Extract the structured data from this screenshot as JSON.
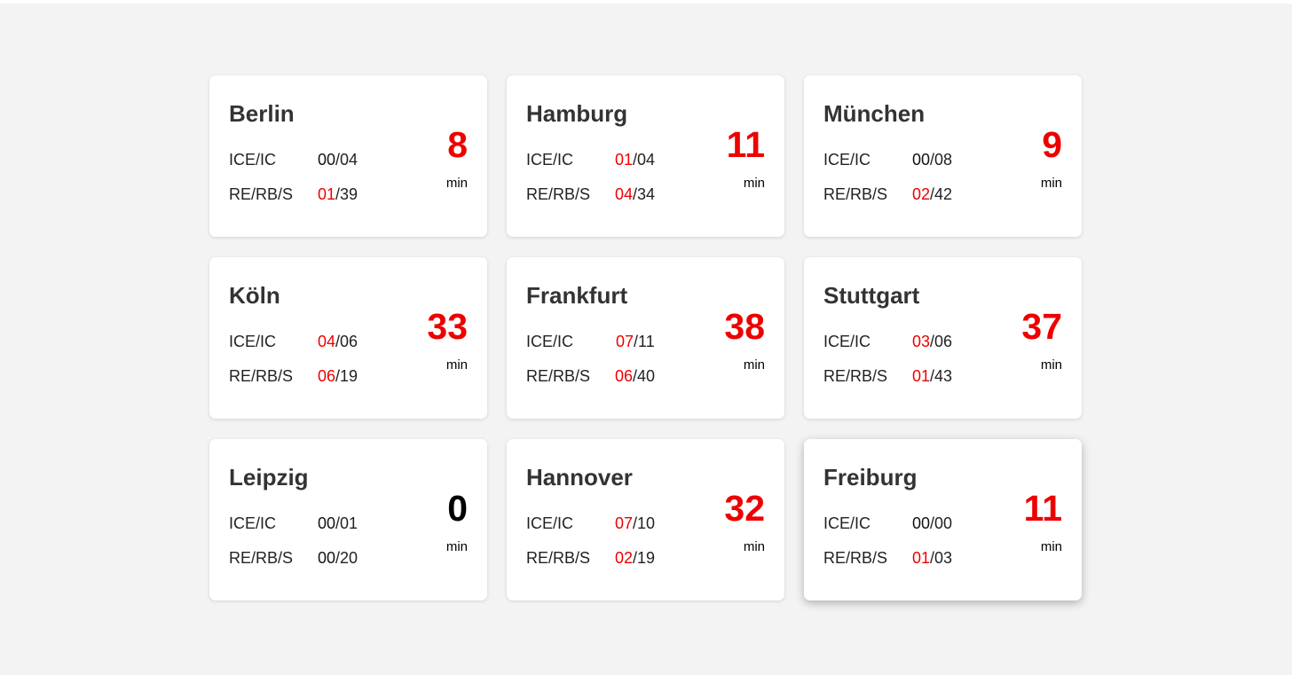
{
  "colors": {
    "background": "#f3f3f3",
    "card": "#ffffff",
    "delay_red": "#ee0000",
    "text": "#222222",
    "title": "#333333"
  },
  "stations": [
    {
      "name": "Berlin",
      "ice_label": "ICE/IC",
      "ice_delayed": "00",
      "ice_total": "04",
      "re_label": "RE/RB/S",
      "re_delayed": "01",
      "re_total": "39",
      "delay": "8",
      "unit": "min"
    },
    {
      "name": "Hamburg",
      "ice_label": "ICE/IC",
      "ice_delayed": "01",
      "ice_total": "04",
      "re_label": "RE/RB/S",
      "re_delayed": "04",
      "re_total": "34",
      "delay": "11",
      "unit": "min"
    },
    {
      "name": "München",
      "ice_label": "ICE/IC",
      "ice_delayed": "00",
      "ice_total": "08",
      "re_label": "RE/RB/S",
      "re_delayed": "02",
      "re_total": "42",
      "delay": "9",
      "unit": "min"
    },
    {
      "name": "Köln",
      "ice_label": "ICE/IC",
      "ice_delayed": "04",
      "ice_total": "06",
      "re_label": "RE/RB/S",
      "re_delayed": "06",
      "re_total": "19",
      "delay": "33",
      "unit": "min"
    },
    {
      "name": "Frankfurt",
      "ice_label": "ICE/IC",
      "ice_delayed": "07",
      "ice_total": "11",
      "re_label": "RE/RB/S",
      "re_delayed": "06",
      "re_total": "40",
      "delay": "38",
      "unit": "min"
    },
    {
      "name": "Stuttgart",
      "ice_label": "ICE/IC",
      "ice_delayed": "03",
      "ice_total": "06",
      "re_label": "RE/RB/S",
      "re_delayed": "01",
      "re_total": "43",
      "delay": "37",
      "unit": "min"
    },
    {
      "name": "Leipzig",
      "ice_label": "ICE/IC",
      "ice_delayed": "00",
      "ice_total": "01",
      "re_label": "RE/RB/S",
      "re_delayed": "00",
      "re_total": "20",
      "delay": "0",
      "unit": "min"
    },
    {
      "name": "Hannover",
      "ice_label": "ICE/IC",
      "ice_delayed": "07",
      "ice_total": "10",
      "re_label": "RE/RB/S",
      "re_delayed": "02",
      "re_total": "19",
      "delay": "32",
      "unit": "min"
    },
    {
      "name": "Freiburg",
      "ice_label": "ICE/IC",
      "ice_delayed": "00",
      "ice_total": "00",
      "re_label": "RE/RB/S",
      "re_delayed": "01",
      "re_total": "03",
      "delay": "11",
      "unit": "min"
    }
  ]
}
